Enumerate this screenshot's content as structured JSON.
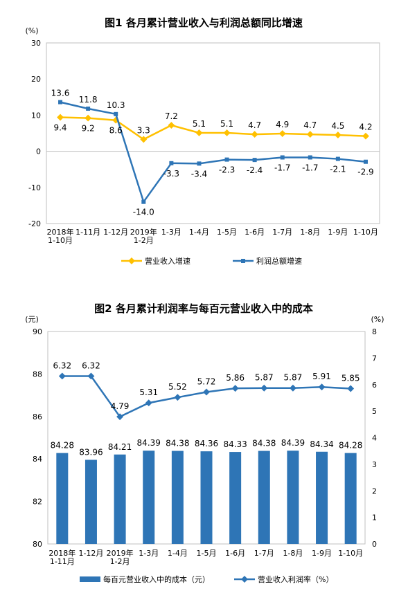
{
  "chart_data": [
    {
      "type": "line",
      "title": "图1  各月累计营业收入与利润总额同比增速",
      "y_unit": "(%)",
      "ylim": [
        -20,
        30
      ],
      "y_ticks": [
        "30",
        "20",
        "10",
        "0",
        "-10",
        "-20"
      ],
      "categories": [
        "2018年\n1-10月",
        "1-11月",
        "1-12月",
        "2019年\n1-2月",
        "1-3月",
        "1-4月",
        "1-5月",
        "1-6月",
        "1-7月",
        "1-8月",
        "1-9月",
        "1-10月"
      ],
      "series": [
        {
          "name": "营业收入增速",
          "color": "#FFC000",
          "values": [
            9.4,
            9.2,
            8.6,
            3.3,
            7.2,
            5.1,
            5.1,
            4.7,
            4.9,
            4.7,
            4.5,
            4.2
          ],
          "labels": [
            "9.4",
            "9.2",
            "8.6",
            "3.3",
            "7.2",
            "5.1",
            "5.1",
            "4.7",
            "4.9",
            "4.7",
            "4.5",
            "4.2"
          ]
        },
        {
          "name": "利润总额增速",
          "color": "#2E75B6",
          "values": [
            13.6,
            11.8,
            10.3,
            -14.0,
            -3.3,
            -3.4,
            -2.3,
            -2.4,
            -1.7,
            -1.7,
            -2.1,
            -2.9
          ],
          "labels": [
            "13.6",
            "11.8",
            "10.3",
            "-14.0",
            "-3.3",
            "-3.4",
            "-2.3",
            "-2.4",
            "-1.7",
            "-1.7",
            "-2.1",
            "-2.9"
          ]
        }
      ],
      "legend_position": "bottom"
    },
    {
      "type": "bar+line",
      "title": "图2  各月累计利润率与每百元营业收入中的成本",
      "y_unit_left": "(元)",
      "y_unit_right": "(%)",
      "ylim_left": [
        80,
        90
      ],
      "ylim_right": [
        0,
        8
      ],
      "y_ticks_left": [
        "90",
        "88",
        "86",
        "84",
        "82",
        "80"
      ],
      "y_ticks_right": [
        "8",
        "7",
        "6",
        "5",
        "4",
        "3",
        "2",
        "1",
        "0"
      ],
      "categories": [
        "2018年\n1-11月",
        "1-12月",
        "2019年\n1-2月",
        "1-3月",
        "1-4月",
        "1-5月",
        "1-6月",
        "1-7月",
        "1-8月",
        "1-9月",
        "1-10月"
      ],
      "bar_series": {
        "name": "每百元营业收入中的成本（元）",
        "color": "#2E75B6",
        "axis": "left",
        "values": [
          84.28,
          83.96,
          84.21,
          84.39,
          84.38,
          84.36,
          84.33,
          84.38,
          84.39,
          84.34,
          84.28
        ],
        "labels": [
          "84.28",
          "83.96",
          "84.21",
          "84.39",
          "84.38",
          "84.36",
          "84.33",
          "84.38",
          "84.39",
          "84.34",
          "84.28"
        ]
      },
      "line_series": {
        "name": "营业收入利润率（%）",
        "color": "#2E75B6",
        "axis": "right",
        "values": [
          6.32,
          6.32,
          4.79,
          5.31,
          5.52,
          5.72,
          5.86,
          5.87,
          5.87,
          5.91,
          5.85
        ],
        "labels": [
          "6.32",
          "6.32",
          "4.79",
          "5.31",
          "5.52",
          "5.72",
          "5.86",
          "5.87",
          "5.87",
          "5.91",
          "5.85"
        ]
      },
      "legend_position": "bottom"
    }
  ]
}
